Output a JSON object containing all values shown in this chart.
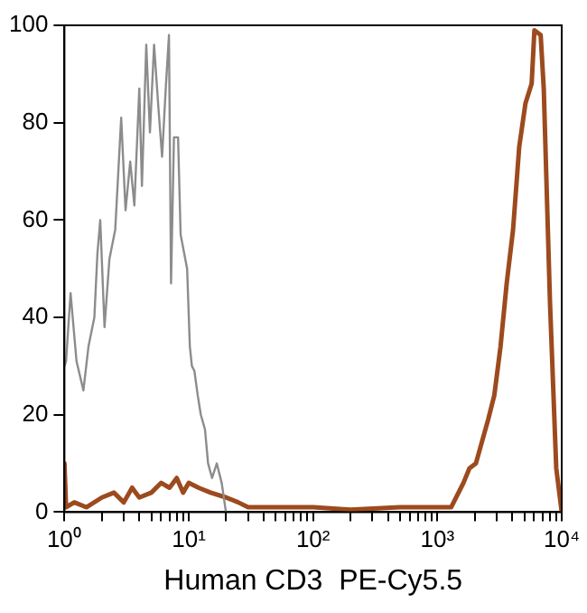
{
  "chart_data": {
    "type": "line",
    "xlabel": "Human CD3  PE-Cy5.5",
    "log": "x",
    "xlim": [
      1,
      10000
    ],
    "ylim": [
      0,
      100
    ],
    "yticks": [
      0,
      20,
      40,
      60,
      80,
      100
    ],
    "xticks": [
      {
        "value": 1,
        "label": "10⁰"
      },
      {
        "value": 2,
        "label": null
      },
      {
        "value": 3,
        "label": null
      },
      {
        "value": 4,
        "label": null
      },
      {
        "value": 5,
        "label": null
      },
      {
        "value": 6,
        "label": null
      },
      {
        "value": 7,
        "label": null
      },
      {
        "value": 8,
        "label": null
      },
      {
        "value": 9,
        "label": null
      },
      {
        "value": 10,
        "label": "10¹"
      },
      {
        "value": 20,
        "label": null
      },
      {
        "value": 30,
        "label": null
      },
      {
        "value": 40,
        "label": null
      },
      {
        "value": 50,
        "label": null
      },
      {
        "value": 60,
        "label": null
      },
      {
        "value": 70,
        "label": null
      },
      {
        "value": 80,
        "label": null
      },
      {
        "value": 90,
        "label": null
      },
      {
        "value": 100,
        "label": "10²"
      },
      {
        "value": 200,
        "label": null
      },
      {
        "value": 300,
        "label": null
      },
      {
        "value": 400,
        "label": null
      },
      {
        "value": 500,
        "label": null
      },
      {
        "value": 600,
        "label": null
      },
      {
        "value": 700,
        "label": null
      },
      {
        "value": 800,
        "label": null
      },
      {
        "value": 900,
        "label": null
      },
      {
        "value": 1000,
        "label": "10³"
      },
      {
        "value": 2000,
        "label": null
      },
      {
        "value": 3000,
        "label": null
      },
      {
        "value": 4000,
        "label": null
      },
      {
        "value": 5000,
        "label": null
      },
      {
        "value": 6000,
        "label": null
      },
      {
        "value": 7000,
        "label": null
      },
      {
        "value": 8000,
        "label": null
      },
      {
        "value": 9000,
        "label": null
      },
      {
        "value": 10000,
        "label": "10⁴"
      }
    ],
    "grid": false,
    "legend": false,
    "marker": "none",
    "line_style": "solid",
    "series": [
      {
        "color": "#8c8c8c",
        "x": [
          1,
          1.03,
          1.12,
          1.25,
          1.42,
          1.56,
          1.74,
          1.84,
          1.94,
          2.1,
          2.3,
          2.56,
          2.86,
          3.1,
          3.38,
          3.65,
          4,
          4.2,
          4.55,
          4.87,
          5.26,
          5.7,
          6.1,
          6.56,
          6.93,
          7.2,
          7.6,
          8.2,
          8.6,
          9.7,
          10.2,
          10.6,
          11.1,
          11.8,
          12.5,
          13.5,
          14.3,
          15.4,
          16.8,
          18.4,
          19.9,
          20
        ],
        "values": [
          30,
          31,
          45,
          31,
          25,
          34,
          40,
          53,
          60,
          38,
          52,
          58,
          81,
          62,
          72,
          63,
          87,
          67,
          96,
          78,
          96,
          83,
          73,
          88,
          98,
          47,
          77,
          77,
          57,
          50,
          34,
          30,
          29,
          24,
          20,
          17,
          10,
          7,
          10,
          6,
          0,
          0
        ]
      },
      {
        "color": "#9c4a1e",
        "x": [
          1,
          1.03,
          1.2,
          1.5,
          2,
          2.5,
          3,
          3.5,
          4,
          5,
          6,
          7,
          8,
          9,
          10,
          12,
          15,
          20,
          25,
          30,
          50,
          100,
          200,
          500,
          800,
          1000,
          1290,
          1620,
          1810,
          2040,
          2560,
          2870,
          3220,
          3610,
          4060,
          4550,
          5110,
          5730,
          6030,
          6770,
          7170,
          8050,
          9040,
          10000
        ],
        "values": [
          10,
          1,
          2,
          1,
          3,
          4,
          2,
          5,
          3,
          4,
          6,
          5,
          7,
          4,
          6,
          5,
          4,
          3,
          2,
          1,
          1,
          1,
          0.5,
          1,
          1,
          1,
          1,
          6,
          9,
          10,
          19,
          24,
          34,
          47,
          58,
          75,
          84,
          88,
          99,
          98,
          87,
          43,
          9,
          0
        ]
      }
    ]
  }
}
